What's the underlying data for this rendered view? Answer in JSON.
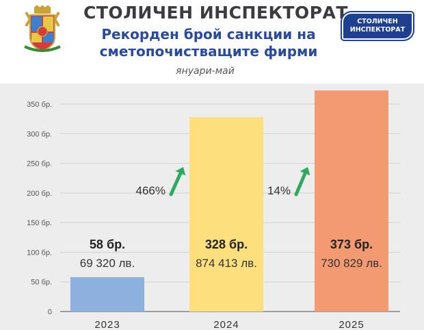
{
  "header": {
    "organization": "СТОЛИЧЕН ИНСПЕКТОРАТ",
    "title_line1": "Рекорден брой санкции на",
    "title_line2": "сметопочистващите фирми",
    "period": "януари-май",
    "badge_line1": "СТОЛИЧЕН",
    "badge_line2": "ИНСПЕКТОРАТ"
  },
  "chart_data": {
    "type": "bar",
    "categories": [
      "2023",
      "2024",
      "2025"
    ],
    "values": [
      58,
      328,
      373
    ],
    "ylim": [
      0,
      350
    ],
    "yticks": [
      0,
      50,
      100,
      150,
      200,
      250,
      300,
      350
    ],
    "ytick_labels": [
      "0",
      "50 бр.",
      "100 бр.",
      "150 бр.",
      "200 бр.",
      "250 бр.",
      "300 бр.",
      "350 бр."
    ],
    "count_labels": [
      "58 бр.",
      "328 бр.",
      "373 бр."
    ],
    "amount_labels": [
      "69 320 лв.",
      "874 413 лв.",
      "730 829 лв."
    ],
    "colors": [
      "#8db0de",
      "#fde07d",
      "#f49a73"
    ],
    "growth": [
      {
        "label": "466%"
      },
      {
        "label": "14%"
      }
    ],
    "arrow_color": "#2eaa60",
    "grid": true
  }
}
